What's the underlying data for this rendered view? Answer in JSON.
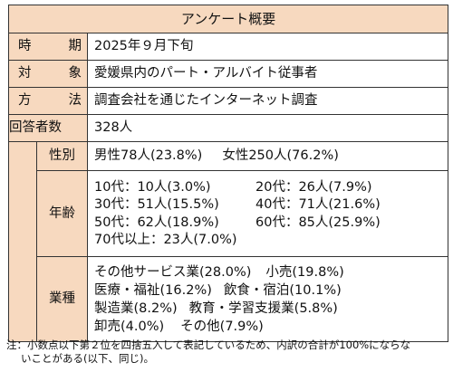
{
  "title": "アンケート概要",
  "rows": {
    "period": {
      "label_chars": [
        "時",
        "期"
      ],
      "value": "2025年９月下旬"
    },
    "target": {
      "label_chars": [
        "対",
        "象"
      ],
      "value": "愛媛県内のパート・アルバイト従事者"
    },
    "method": {
      "label_chars": [
        "方",
        "法"
      ],
      "value": "調査会社を通じたインターネット調査"
    },
    "respondents": {
      "label": "回答者数",
      "value": "328人"
    }
  },
  "gender": {
    "label": "性別",
    "male": "男性78人(23.8%)",
    "female": "女性250人(76.2%)"
  },
  "age": {
    "label": "年齢",
    "items": [
      "10代：10人(3.0%)",
      "20代：26人(7.9%)",
      "30代：51人(15.5%)",
      "40代：71人(21.6%)",
      "50代：62人(18.9%)",
      "60代：85人(25.9%)",
      "70代以上：23人(7.0%)"
    ]
  },
  "industry": {
    "label": "業種",
    "items": [
      "その他サービス業(28.0%)",
      "小売(19.8%)",
      "医療・福祉(16.2%)",
      "飲食・宿泊(10.1%)",
      "製造業(8.2%)",
      "教育・学習支援業(5.8%)",
      "卸売(4.0%)",
      "その他(7.9%)"
    ]
  },
  "note": {
    "line1": "注：小数点以下第２位を四捨五入して表記しているため、内訳の合計が100%にならな",
    "line2": "いことがある(以下、同じ)。"
  }
}
